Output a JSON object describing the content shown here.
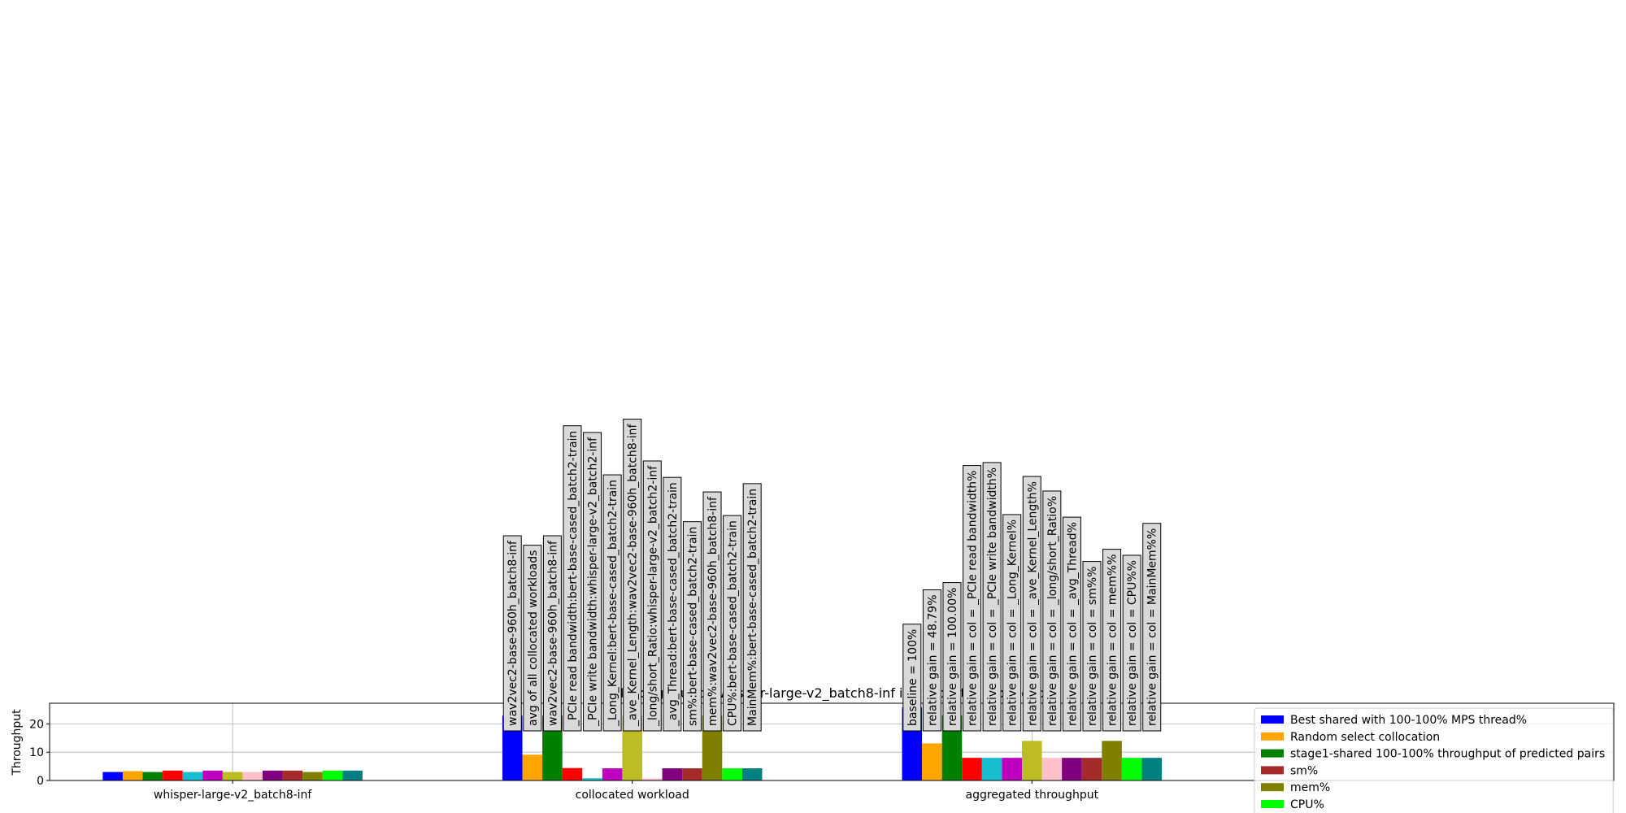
{
  "chart_data": {
    "type": "bar",
    "title": "Throughput of whisper-large-v2_batch8-inf in collocated workload",
    "ylabel": "Throughput",
    "categories": [
      "whisper-large-v2_batch8-inf",
      "collocated workload",
      "aggregated throughput"
    ],
    "series": [
      {
        "name": "Best shared with 100-100% MPS thread%",
        "color": "#0000ff",
        "values": [
          3.0,
          22.9,
          25.8
        ]
      },
      {
        "name": "Random select collocation",
        "color": "#ffa500",
        "values": [
          3.3,
          9.1,
          13.1
        ]
      },
      {
        "name": "stage1-shared 100-100% throughput of predicted pairs",
        "color": "#008000",
        "values": [
          3.0,
          22.9,
          23.0
        ]
      },
      {
        "color": "#ff0000",
        "values": [
          3.5,
          4.4,
          8.0
        ]
      },
      {
        "color": "#17becf",
        "values": [
          3.0,
          0.8,
          8.0
        ]
      },
      {
        "color": "#bf00bf",
        "values": [
          3.5,
          4.3,
          8.0
        ]
      },
      {
        "color": "#bcbd22",
        "values": [
          3.0,
          22.9,
          14.0
        ]
      },
      {
        "color": "#ffc0cb",
        "values": [
          3.0,
          0.7,
          8.0
        ]
      },
      {
        "color": "#800080",
        "values": [
          3.5,
          4.3,
          8.0
        ]
      },
      {
        "name": "sm%",
        "color": "#a52a2a",
        "values": [
          3.5,
          4.3,
          8.0
        ]
      },
      {
        "name": "mem%",
        "color": "#808000",
        "values": [
          3.0,
          22.9,
          14.0
        ]
      },
      {
        "name": "CPU%",
        "color": "#00ff00",
        "values": [
          3.5,
          4.3,
          8.0
        ]
      },
      {
        "color": "#008080",
        "values": [
          3.5,
          4.3,
          8.0
        ]
      }
    ],
    "annotation_groups": [
      [],
      [
        "wav2vec2-base-960h_batch8-inf",
        "avg of all collocated workloads",
        "wav2vec2-base-960h_batch8-inf",
        "_PCIe read bandwidth:bert-base-cased_batch2-train",
        "_PCIe write bandwidth:whisper-large-v2_batch2-inf",
        "_Long_Kernel:bert-base-cased_batch2-train",
        "_ave_Kernel_Length:wav2vec2-base-960h_batch8-inf",
        "_long/short_Ratio:whisper-large-v2_batch2-inf",
        "_avg_Thread:bert-base-cased_batch2-train",
        "sm%:bert-base-cased_batch2-train",
        "mem%:wav2vec2-base-960h_batch8-inf",
        "CPU%:bert-base-cased_batch2-train",
        "MainMem%:bert-base-cased_batch2-train"
      ],
      [
        "baseline = 100%",
        "relative gain = 48.79%",
        "relative gain = 100.00%",
        "relative gain = col = _PCIe read bandwidth%",
        "relative gain = col = _PCIe write bandwidth%",
        "relative gain = col = _Long_Kernel%",
        "relative gain = col = _ave_Kernel_Length%",
        "relative gain = col = _long/short_Ratio%",
        "relative gain = col = _avg_Thread%",
        "relative gain = col = sm%%",
        "relative gain = col = mem%%",
        "relative gain = col = CPU%%",
        "relative gain = col = MainMem%%"
      ]
    ],
    "ylim": [
      0,
      27.3
    ],
    "yticks": [
      0,
      10,
      20
    ],
    "grid": true,
    "legend": "lower right"
  }
}
